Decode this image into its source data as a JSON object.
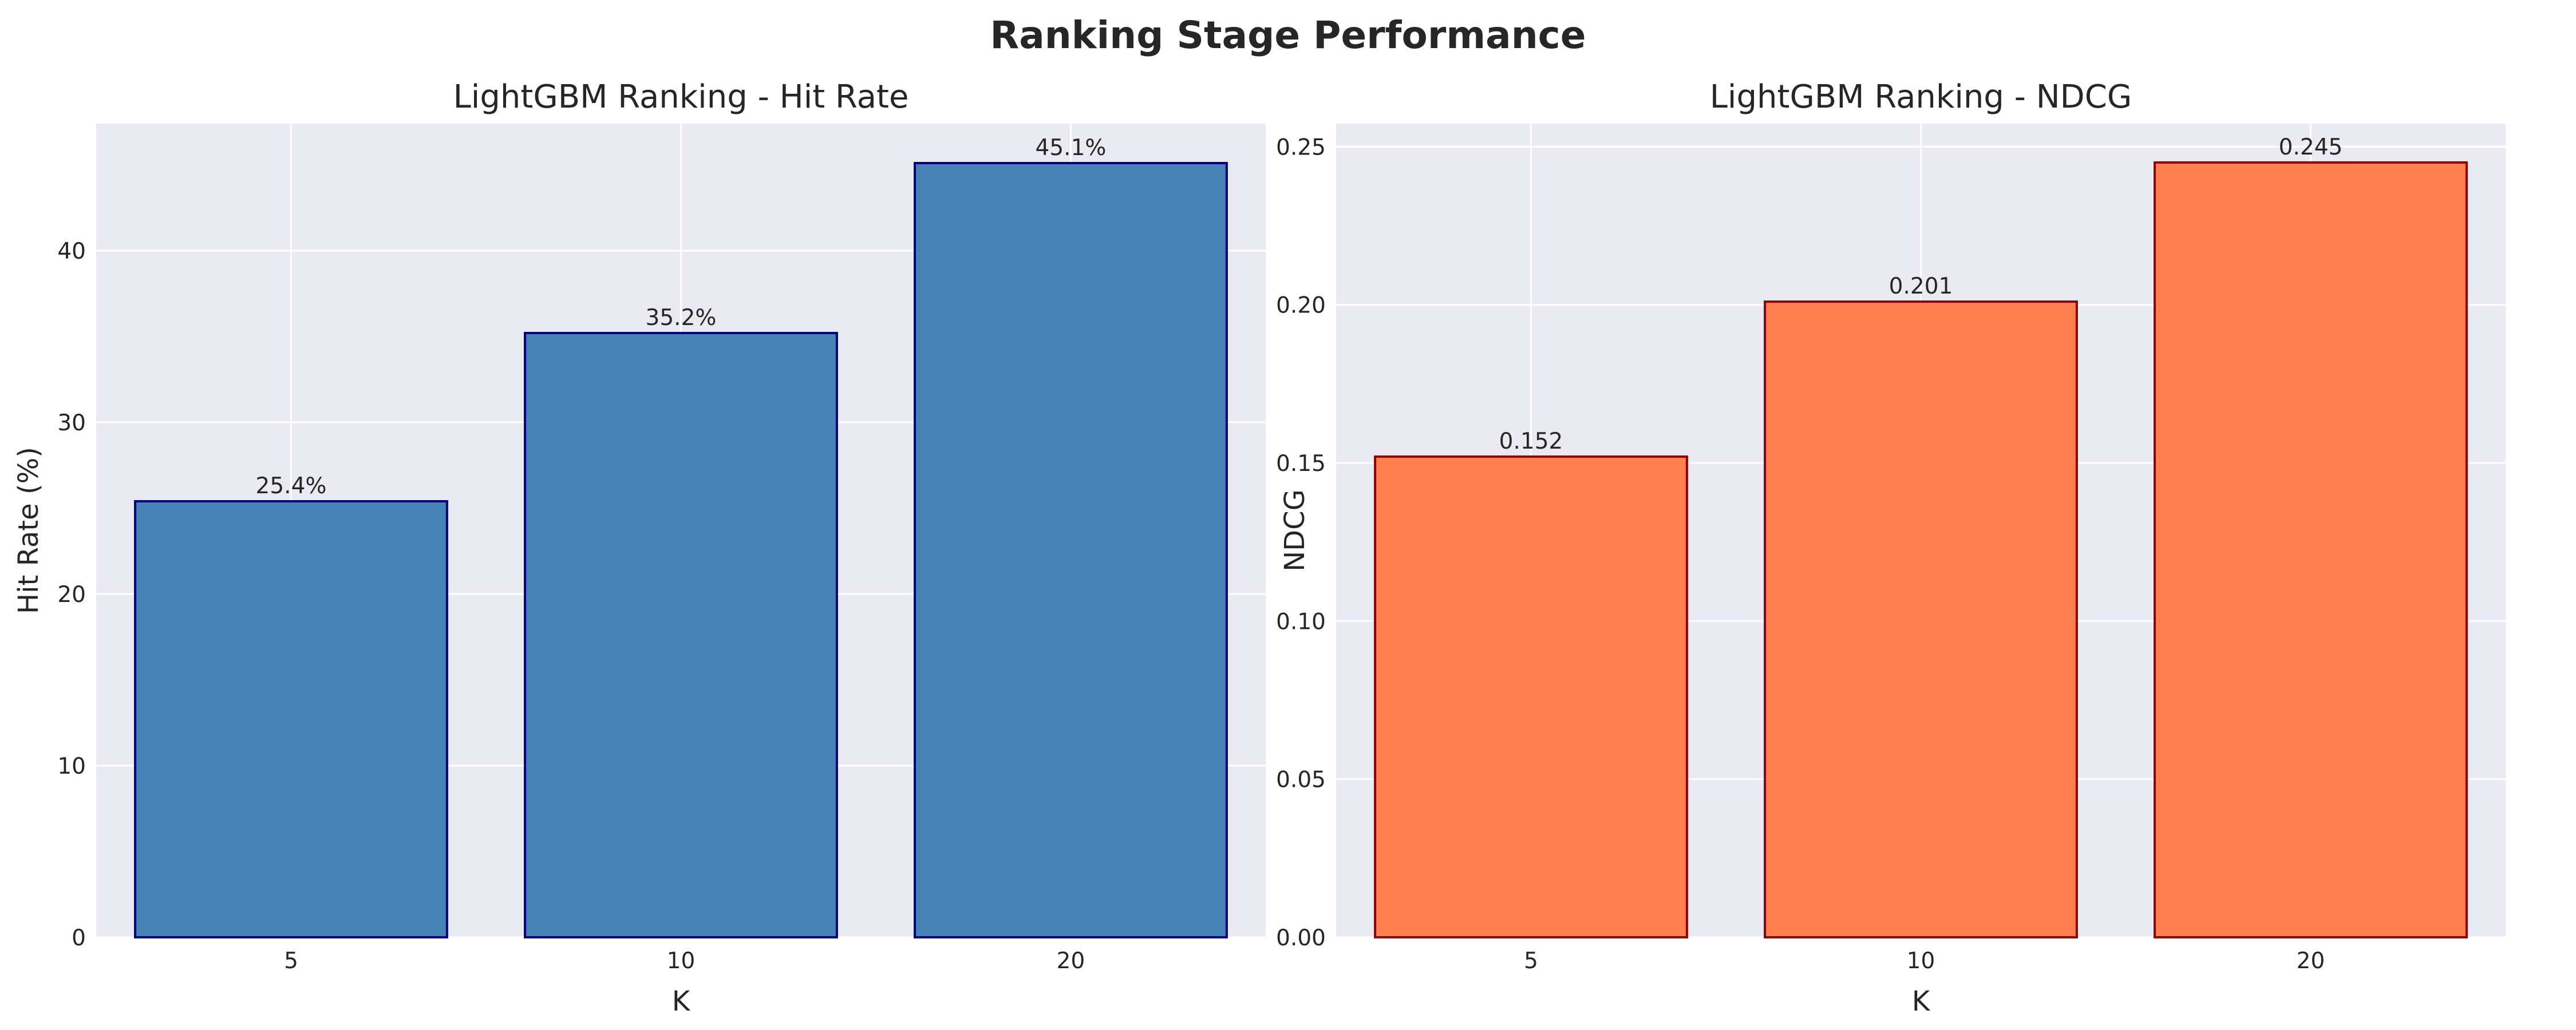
{
  "figure": {
    "title": "Ranking Stage Performance",
    "background": "#ffffff",
    "plot_background": "#EAEAF2",
    "grid_color": "#ffffff",
    "text_color": "#262626"
  },
  "chart_data": [
    {
      "type": "bar",
      "title": "LightGBM Ranking - Hit Rate",
      "xlabel": "K",
      "ylabel": "Hit Rate (%)",
      "categories": [
        "5",
        "10",
        "20"
      ],
      "values": [
        25.4,
        35.2,
        45.1
      ],
      "value_labels": [
        "25.4%",
        "35.2%",
        "45.1%"
      ],
      "ylim": [
        0,
        47.4
      ],
      "yticks": [
        0,
        10,
        20,
        30,
        40
      ],
      "ytick_labels": [
        "0",
        "10",
        "20",
        "30",
        "40"
      ],
      "bar_color": "#4682B4",
      "edge_color": "#000080",
      "grid": true,
      "legend": null
    },
    {
      "type": "bar",
      "title": "LightGBM Ranking - NDCG",
      "xlabel": "K",
      "ylabel": "NDCG",
      "categories": [
        "5",
        "10",
        "20"
      ],
      "values": [
        0.152,
        0.201,
        0.245
      ],
      "value_labels": [
        "0.152",
        "0.201",
        "0.245"
      ],
      "ylim": [
        0,
        0.2573
      ],
      "yticks": [
        0,
        0.05,
        0.1,
        0.15,
        0.2,
        0.25
      ],
      "ytick_labels": [
        "0.00",
        "0.05",
        "0.10",
        "0.15",
        "0.20",
        "0.25"
      ],
      "bar_color": "#FF7F50",
      "edge_color": "#8B0000",
      "grid": true,
      "legend": null
    }
  ]
}
